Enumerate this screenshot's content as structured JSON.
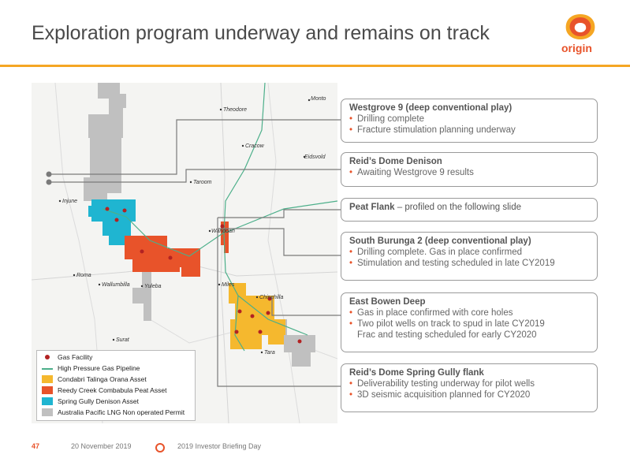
{
  "title": "Exploration program underway and remains on track",
  "brand": {
    "name": "origin",
    "accent": "#e8532a",
    "rule_color": "#f5a623"
  },
  "towns": [
    "Monto",
    "Theodore",
    "Cracow",
    "Eidsvold",
    "Taroom",
    "Injune",
    "Wandoan",
    "Roma",
    "Wallumbilla",
    "Yuleba",
    "Miles",
    "Chinchilla",
    "Surat",
    "Tara"
  ],
  "callouts": [
    {
      "head": "Westgrove 9 (deep conventional play)",
      "items": [
        "Drilling complete",
        "Fracture stimulation planning underway"
      ]
    },
    {
      "head": "Reid’s Dome Denison",
      "items": [
        "Awaiting Westgrove 9 results"
      ]
    },
    {
      "head": "Peat Flank",
      "tail": " – profiled on the following slide",
      "items": []
    },
    {
      "head": "South Burunga 2 (deep conventional play)",
      "items": [
        "Drilling complete. Gas in place confirmed",
        "Stimulation and testing scheduled in late CY2019"
      ]
    },
    {
      "head": "East Bowen Deep",
      "items": [
        "Gas in place confirmed with core holes",
        "Two pilot wells on track to spud in late CY2019"
      ],
      "continuation": "Frac and testing scheduled for early CY2020"
    },
    {
      "head": "Reid’s Dome Spring Gully flank",
      "items": [
        "Deliverability testing underway for pilot wells",
        "3D seismic acquisition planned for CY2020"
      ]
    }
  ],
  "legend": [
    {
      "label": "Gas Facility",
      "color": "#b22222",
      "symbol": "dot"
    },
    {
      "label": "High Pressure Gas Pipeline",
      "color": "#4caf8a",
      "symbol": "line"
    },
    {
      "label": "Condabri Talinga Orana Asset",
      "color": "#f5b82e",
      "symbol": "box"
    },
    {
      "label": "Reedy Creek Combabula Peat Asset",
      "color": "#e8532a",
      "symbol": "box"
    },
    {
      "label": "Spring Gully Denison Asset",
      "color": "#1fb5d1",
      "symbol": "box"
    },
    {
      "label": "Australia Pacific LNG Non operated Permit",
      "color": "#c0c0c0",
      "symbol": "box"
    }
  ],
  "footer": {
    "page": "47",
    "date": "20 November 2019",
    "event": "2019 Investor Briefing Day"
  }
}
